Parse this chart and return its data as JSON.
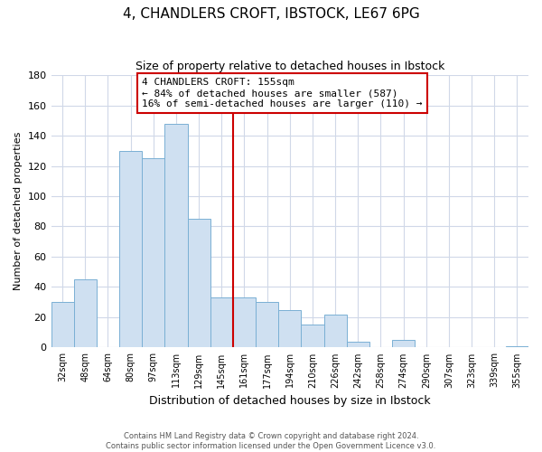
{
  "title": "4, CHANDLERS CROFT, IBSTOCK, LE67 6PG",
  "subtitle": "Size of property relative to detached houses in Ibstock",
  "xlabel": "Distribution of detached houses by size in Ibstock",
  "ylabel": "Number of detached properties",
  "bar_labels": [
    "32sqm",
    "48sqm",
    "64sqm",
    "80sqm",
    "97sqm",
    "113sqm",
    "129sqm",
    "145sqm",
    "161sqm",
    "177sqm",
    "194sqm",
    "210sqm",
    "226sqm",
    "242sqm",
    "258sqm",
    "274sqm",
    "290sqm",
    "307sqm",
    "323sqm",
    "339sqm",
    "355sqm"
  ],
  "bar_heights": [
    30,
    45,
    0,
    130,
    125,
    148,
    85,
    33,
    33,
    30,
    25,
    15,
    22,
    4,
    0,
    5,
    0,
    0,
    0,
    0,
    1
  ],
  "bar_color": "#cfe0f1",
  "bar_edge_color": "#7ab0d4",
  "vline_x_label": "161sqm",
  "vline_color": "#cc0000",
  "annotation_title": "4 CHANDLERS CROFT: 155sqm",
  "annotation_line1": "← 84% of detached houses are smaller (587)",
  "annotation_line2": "16% of semi-detached houses are larger (110) →",
  "annotation_box_color": "#ffffff",
  "annotation_box_edge": "#cc0000",
  "ylim": [
    0,
    180
  ],
  "yticks": [
    0,
    20,
    40,
    60,
    80,
    100,
    120,
    140,
    160,
    180
  ],
  "footer_line1": "Contains HM Land Registry data © Crown copyright and database right 2024.",
  "footer_line2": "Contains public sector information licensed under the Open Government Licence v3.0.",
  "background_color": "#ffffff",
  "grid_color": "#d0d8e8"
}
